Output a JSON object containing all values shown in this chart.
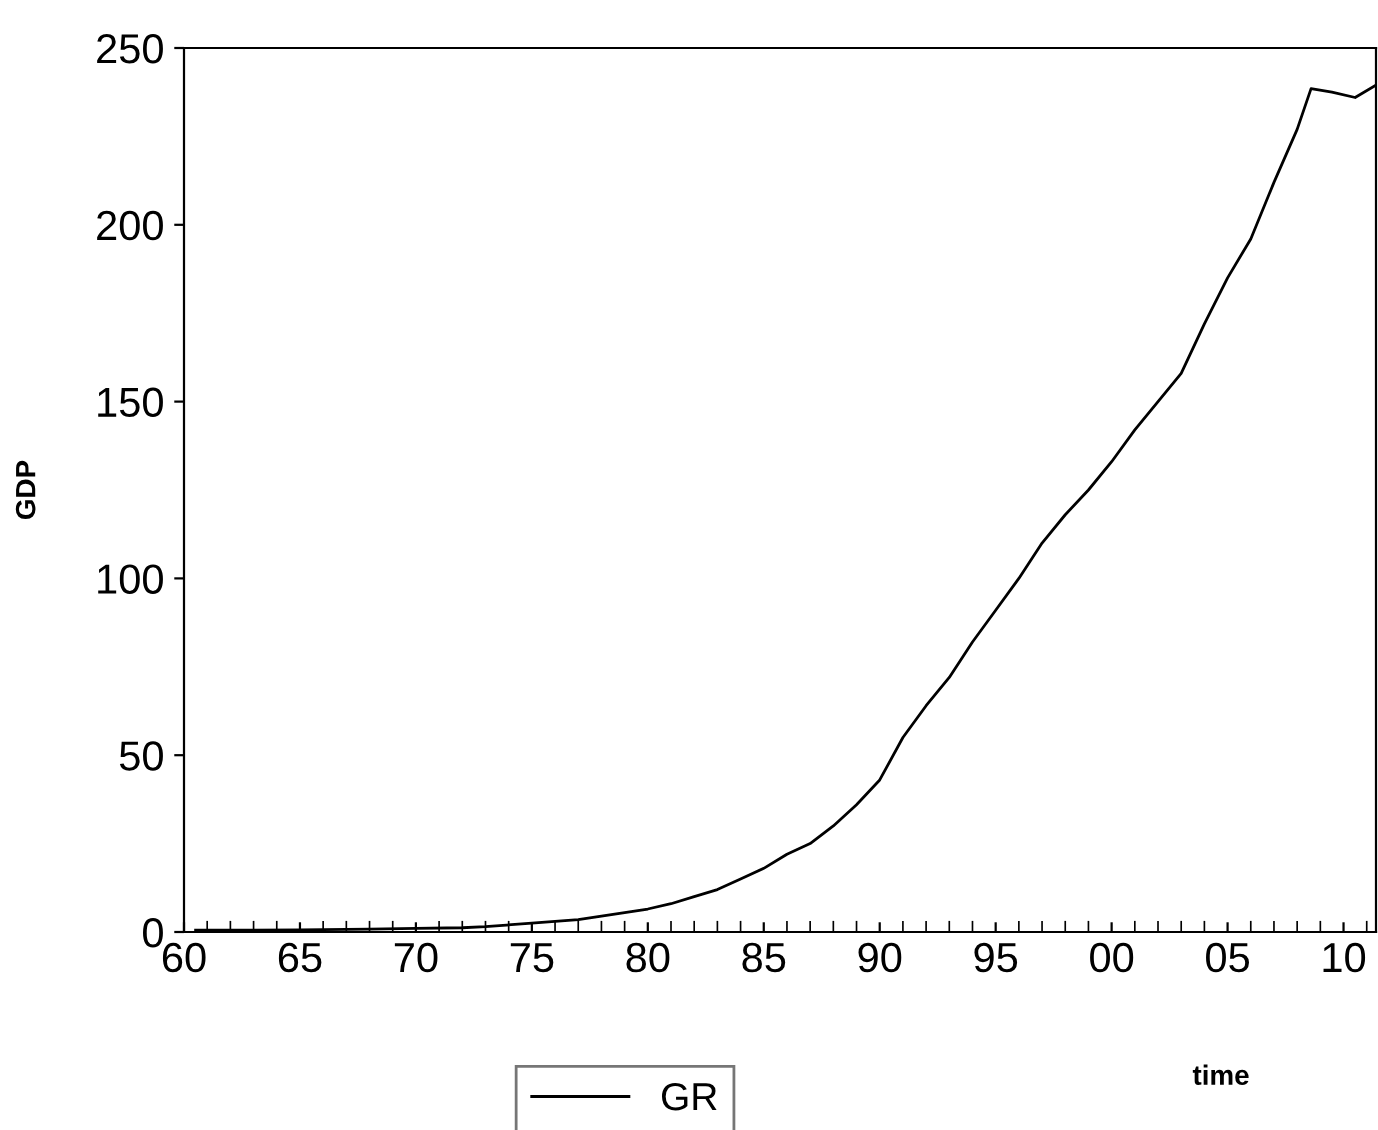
{
  "chart_data": {
    "type": "line",
    "xlabel": "time",
    "ylabel": "GDP",
    "x": [
      1960.5,
      1962,
      1965,
      1968,
      1970,
      1972,
      1973,
      1975,
      1977,
      1978,
      1979,
      1980,
      1981,
      1982,
      1983,
      1984,
      1985,
      1986,
      1987,
      1988,
      1989,
      1990,
      1991,
      1992,
      1993,
      1994,
      1995,
      1996,
      1997,
      1998,
      1999,
      2000,
      2001,
      2002,
      2003,
      2004,
      2005,
      2006,
      2007,
      2008,
      2008.6,
      2009.5,
      2010.5,
      2011.4
    ],
    "series": [
      {
        "name": "GR",
        "color": "#000000",
        "values": [
          0.5,
          0.5,
          0.6,
          0.8,
          1.0,
          1.2,
          1.5,
          2.5,
          3.5,
          4.5,
          5.5,
          6.5,
          8,
          10,
          12,
          15,
          18,
          22,
          25,
          30,
          36,
          43,
          55,
          64,
          72,
          82,
          91,
          100,
          110,
          118,
          125,
          133,
          142,
          150,
          158,
          172,
          185,
          196,
          212,
          227,
          238.5,
          237.5,
          236,
          239.5
        ]
      }
    ],
    "xlim": [
      1960,
      2011.4
    ],
    "xticks": [
      {
        "value": 1960,
        "label": "60"
      },
      {
        "value": 1965,
        "label": "65"
      },
      {
        "value": 1970,
        "label": "70"
      },
      {
        "value": 1975,
        "label": "75"
      },
      {
        "value": 1980,
        "label": "80"
      },
      {
        "value": 1985,
        "label": "85"
      },
      {
        "value": 1990,
        "label": "90"
      },
      {
        "value": 1995,
        "label": "95"
      },
      {
        "value": 2000,
        "label": "00"
      },
      {
        "value": 2005,
        "label": "05"
      },
      {
        "value": 2010,
        "label": "10"
      }
    ],
    "ylim": [
      0,
      250
    ],
    "yticks": [
      0,
      50,
      100,
      150,
      200,
      250
    ],
    "grid": false,
    "legend": "bottom",
    "marker": "none",
    "line_style": "solid"
  }
}
